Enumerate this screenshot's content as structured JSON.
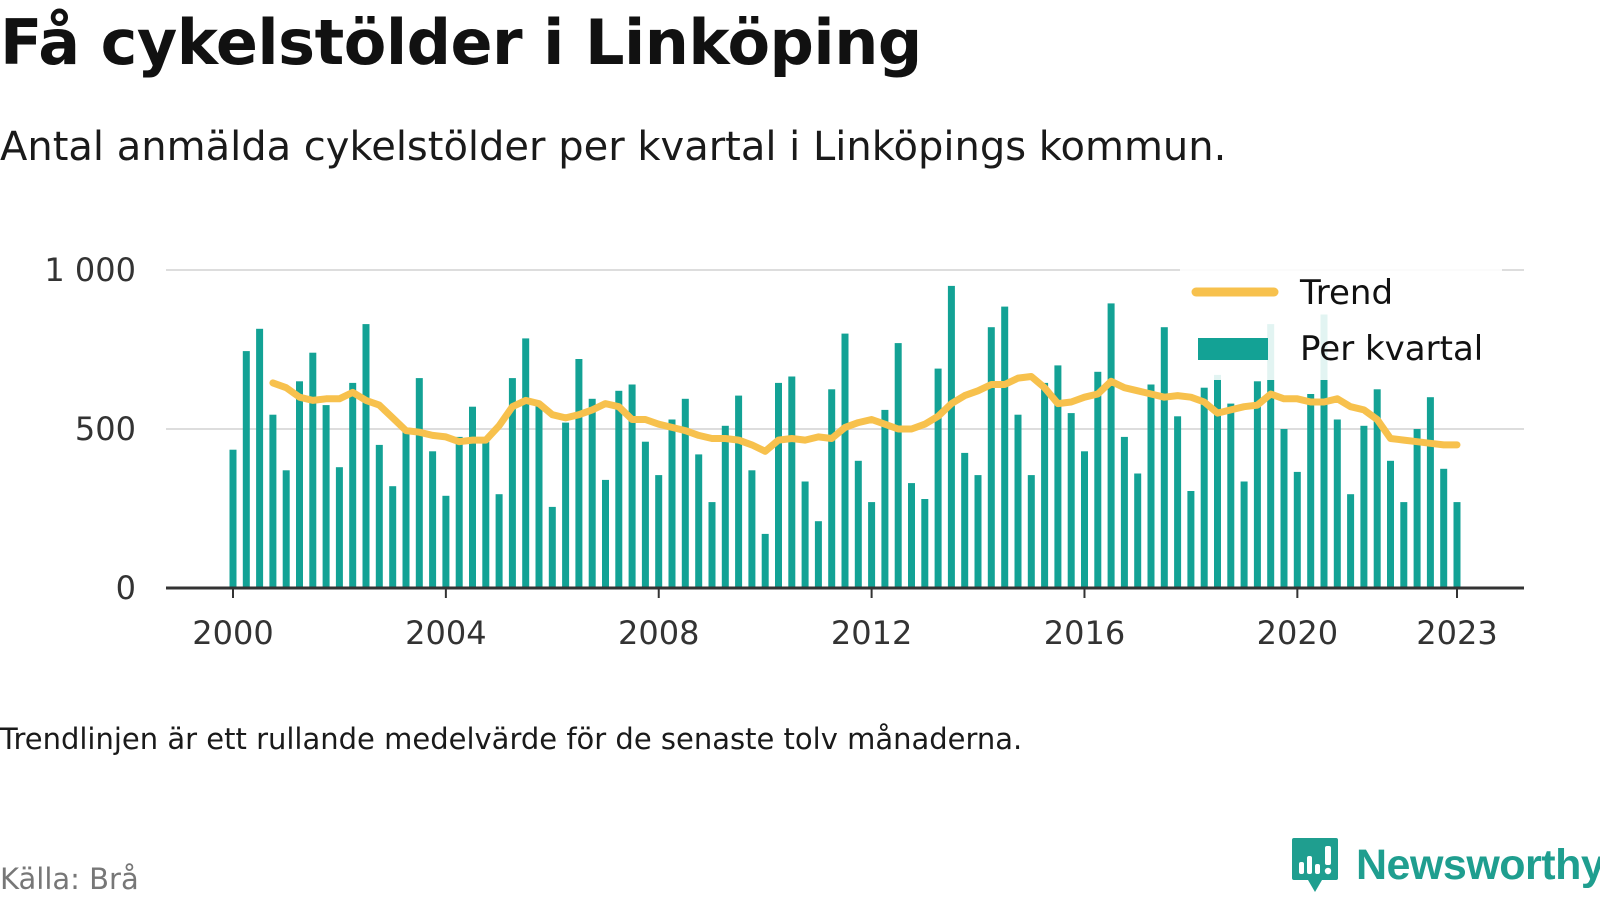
{
  "header": {
    "title": "Få cykelstölder i Linköping",
    "subtitle": "Antal anmälda cykelstölder per kvartal i Linköpings kommun."
  },
  "footer": {
    "note": "Trendlinjen är ett rullande medelvärde för de senaste tolv månaderna.",
    "source": "Källa: Brå",
    "brand": "Newsworthy"
  },
  "colors": {
    "bars": "#13a295",
    "trend": "#f7c14d",
    "grid": "#dddddd",
    "axis": "#333333",
    "brand": "#1f9e8f"
  },
  "icons": {
    "brand": "newsworthy-chart-logo-icon"
  },
  "chart_data": {
    "type": "bar",
    "title": "Få cykelstölder i Linköping",
    "subtitle": "Antal anmälda cykelstölder per kvartal i Linköpings kommun.",
    "xlabel": "",
    "ylabel": "",
    "ylim": [
      0,
      1000
    ],
    "yticks": [
      0,
      500,
      1000
    ],
    "ytick_labels": [
      "0",
      "500",
      "1 000"
    ],
    "xticks": [
      2000,
      2004,
      2008,
      2012,
      2016,
      2020,
      2023
    ],
    "xtick_labels": [
      "2000",
      "2004",
      "2008",
      "2012",
      "2016",
      "2020",
      "2023"
    ],
    "grid": true,
    "legend_position": "top-right",
    "series": [
      {
        "name": "Per kvartal",
        "type": "bar",
        "x": [
          "2000 Q1",
          "2000 Q2",
          "2000 Q3",
          "2000 Q4",
          "2001 Q1",
          "2001 Q2",
          "2001 Q3",
          "2001 Q4",
          "2002 Q1",
          "2002 Q2",
          "2002 Q3",
          "2002 Q4",
          "2003 Q1",
          "2003 Q2",
          "2003 Q3",
          "2003 Q4",
          "2004 Q1",
          "2004 Q2",
          "2004 Q3",
          "2004 Q4",
          "2005 Q1",
          "2005 Q2",
          "2005 Q3",
          "2005 Q4",
          "2006 Q1",
          "2006 Q2",
          "2006 Q3",
          "2006 Q4",
          "2007 Q1",
          "2007 Q2",
          "2007 Q3",
          "2007 Q4",
          "2008 Q1",
          "2008 Q2",
          "2008 Q3",
          "2008 Q4",
          "2009 Q1",
          "2009 Q2",
          "2009 Q3",
          "2009 Q4",
          "2010 Q1",
          "2010 Q2",
          "2010 Q3",
          "2010 Q4",
          "2011 Q1",
          "2011 Q2",
          "2011 Q3",
          "2011 Q4",
          "2012 Q1",
          "2012 Q2",
          "2012 Q3",
          "2012 Q4",
          "2013 Q1",
          "2013 Q2",
          "2013 Q3",
          "2013 Q4",
          "2014 Q1",
          "2014 Q2",
          "2014 Q3",
          "2014 Q4",
          "2015 Q1",
          "2015 Q2",
          "2015 Q3",
          "2015 Q4",
          "2016 Q1",
          "2016 Q2",
          "2016 Q3",
          "2016 Q4",
          "2017 Q1",
          "2017 Q2",
          "2017 Q3",
          "2017 Q4",
          "2018 Q1",
          "2018 Q2",
          "2018 Q3",
          "2018 Q4",
          "2019 Q1",
          "2019 Q2",
          "2019 Q3",
          "2019 Q4",
          "2020 Q1",
          "2020 Q2",
          "2020 Q3",
          "2020 Q4",
          "2021 Q1",
          "2021 Q2",
          "2021 Q3",
          "2021 Q4",
          "2022 Q1",
          "2022 Q2",
          "2022 Q3",
          "2022 Q4",
          "2023 Q1"
        ],
        "values": [
          435,
          745,
          815,
          545,
          370,
          650,
          740,
          575,
          380,
          645,
          830,
          450,
          320,
          495,
          660,
          430,
          290,
          475,
          570,
          460,
          295,
          660,
          785,
          580,
          255,
          520,
          720,
          595,
          340,
          620,
          640,
          460,
          355,
          530,
          595,
          420,
          270,
          510,
          605,
          370,
          170,
          645,
          665,
          335,
          210,
          625,
          800,
          400,
          270,
          560,
          770,
          330,
          280,
          690,
          950,
          425,
          355,
          820,
          885,
          545,
          355,
          645,
          700,
          550,
          430,
          680,
          895,
          475,
          360,
          640,
          820,
          540,
          305,
          630,
          670,
          580,
          335,
          650,
          830,
          500,
          365,
          610,
          860,
          530,
          295,
          510,
          625,
          400,
          270,
          500,
          600,
          375,
          270
        ]
      },
      {
        "name": "Trend",
        "type": "line",
        "x": [
          "2000 Q4",
          "2001 Q1",
          "2001 Q2",
          "2001 Q3",
          "2001 Q4",
          "2002 Q1",
          "2002 Q2",
          "2002 Q3",
          "2002 Q4",
          "2003 Q1",
          "2003 Q2",
          "2003 Q3",
          "2003 Q4",
          "2004 Q1",
          "2004 Q2",
          "2004 Q3",
          "2004 Q4",
          "2005 Q1",
          "2005 Q2",
          "2005 Q3",
          "2005 Q4",
          "2006 Q1",
          "2006 Q2",
          "2006 Q3",
          "2006 Q4",
          "2007 Q1",
          "2007 Q2",
          "2007 Q3",
          "2007 Q4",
          "2008 Q1",
          "2008 Q2",
          "2008 Q3",
          "2008 Q4",
          "2009 Q1",
          "2009 Q2",
          "2009 Q3",
          "2009 Q4",
          "2010 Q1",
          "2010 Q2",
          "2010 Q3",
          "2010 Q4",
          "2011 Q1",
          "2011 Q2",
          "2011 Q3",
          "2011 Q4",
          "2012 Q1",
          "2012 Q2",
          "2012 Q3",
          "2012 Q4",
          "2013 Q1",
          "2013 Q2",
          "2013 Q3",
          "2013 Q4",
          "2014 Q1",
          "2014 Q2",
          "2014 Q3",
          "2014 Q4",
          "2015 Q1",
          "2015 Q2",
          "2015 Q3",
          "2015 Q4",
          "2016 Q1",
          "2016 Q2",
          "2016 Q3",
          "2016 Q4",
          "2017 Q1",
          "2017 Q2",
          "2017 Q3",
          "2017 Q4",
          "2018 Q1",
          "2018 Q2",
          "2018 Q3",
          "2018 Q4",
          "2019 Q1",
          "2019 Q2",
          "2019 Q3",
          "2019 Q4",
          "2020 Q1",
          "2020 Q2",
          "2020 Q3",
          "2020 Q4",
          "2021 Q1",
          "2021 Q2",
          "2021 Q3",
          "2021 Q4",
          "2022 Q1",
          "2022 Q2",
          "2022 Q3",
          "2022 Q4",
          "2023 Q1"
        ],
        "values": [
          645,
          630,
          600,
          590,
          595,
          595,
          615,
          590,
          575,
          535,
          495,
          490,
          480,
          475,
          460,
          465,
          465,
          510,
          570,
          590,
          580,
          545,
          535,
          545,
          560,
          580,
          570,
          530,
          530,
          515,
          505,
          495,
          480,
          470,
          470,
          465,
          450,
          430,
          465,
          470,
          465,
          475,
          470,
          505,
          520,
          530,
          515,
          500,
          500,
          515,
          540,
          580,
          605,
          620,
          640,
          640,
          660,
          665,
          630,
          580,
          585,
          600,
          610,
          650,
          630,
          620,
          610,
          600,
          605,
          600,
          585,
          550,
          560,
          570,
          575,
          610,
          595,
          595,
          585,
          585,
          595,
          570,
          560,
          530,
          470,
          465,
          460,
          455,
          450,
          450
        ]
      }
    ]
  }
}
